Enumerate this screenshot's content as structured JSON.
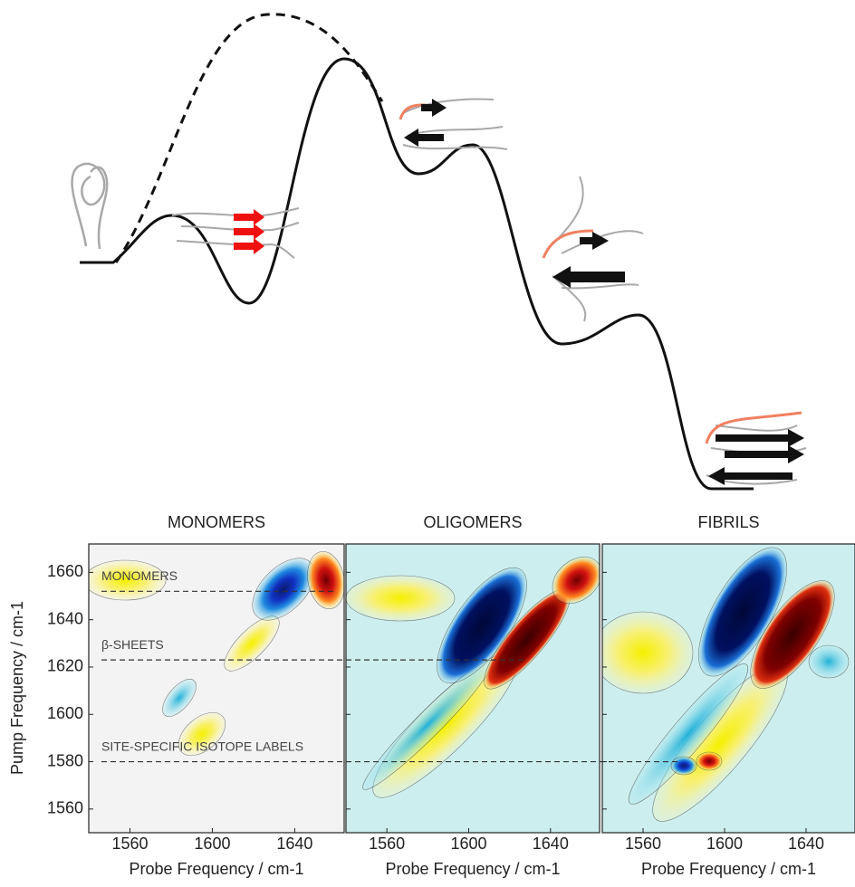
{
  "figure": {
    "ylabel": "Pump Frequency / cm-1",
    "panels": [
      {
        "title": "MONOMERS",
        "xlabel": "Probe Frequency / cm-1"
      },
      {
        "title": "OLIGOMERS",
        "xlabel": "Probe Frequency / cm-1"
      },
      {
        "title": "FIBRILS",
        "xlabel": "Probe Frequency / cm-1"
      }
    ],
    "xlim": [
      1540,
      1664
    ],
    "ylim": [
      1550,
      1672
    ],
    "xticks": [
      1560,
      1600,
      1640
    ],
    "yticks": [
      1560,
      1580,
      1600,
      1620,
      1640,
      1660
    ],
    "guides": [
      {
        "label": "MONOMERS",
        "value": 1652
      },
      {
        "label": "β-SHEETS",
        "value": 1623
      },
      {
        "label": "SITE-SPECIFIC ISOTOPE LABELS",
        "value": 1580
      }
    ]
  }
}
